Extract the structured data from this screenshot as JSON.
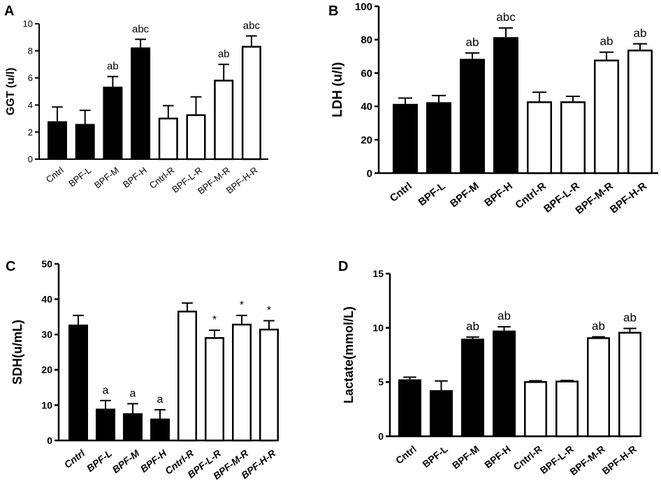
{
  "figure": {
    "panels": [
      "A",
      "B",
      "C",
      "D"
    ]
  },
  "chart_data": [
    {
      "panel": "A",
      "type": "bar",
      "ylabel": "GGT (u/l)",
      "ylim": [
        0,
        10
      ],
      "yticks": [
        "0",
        "2",
        "4",
        "6",
        "8",
        "10"
      ],
      "ytick_values": [
        0,
        2,
        4,
        6,
        8,
        10
      ],
      "categories": [
        "Cntrl",
        "BPF-L",
        "BPF-M",
        "BPF-H",
        "Cntrl-R",
        "BPF-L-R",
        "BPF-M-R",
        "BPF-H-R"
      ],
      "values": [
        2.8,
        2.6,
        5.35,
        8.25,
        3.0,
        3.25,
        5.8,
        8.3
      ],
      "errors": [
        1.05,
        1.0,
        0.75,
        0.6,
        0.95,
        1.35,
        1.2,
        0.8
      ],
      "fills": [
        "black",
        "black",
        "black",
        "black",
        "white",
        "white",
        "white",
        "white"
      ],
      "annotations": [
        "",
        "",
        "ab",
        "abc",
        "",
        "",
        "ab",
        "abc"
      ],
      "bold_labels": false,
      "italic_labels": false
    },
    {
      "panel": "B",
      "type": "bar",
      "ylabel": "LDH (u/l)",
      "ylim": [
        0,
        100
      ],
      "yticks": [
        "0",
        "20",
        "40",
        "60",
        "80",
        "100"
      ],
      "ytick_values": [
        0,
        20,
        40,
        60,
        80,
        100
      ],
      "categories": [
        "Cntrl",
        "BPF-L",
        "BPF-M",
        "BPF-H",
        "Cntrl-R",
        "BPF-L-R",
        "BPF-M-R",
        "BPF-H-R"
      ],
      "values": [
        41.5,
        42.5,
        68.5,
        81.5,
        42.5,
        42.5,
        67.5,
        73.5
      ],
      "errors": [
        3.5,
        4.0,
        3.5,
        5.5,
        6.0,
        3.5,
        5.0,
        4.0
      ],
      "fills": [
        "black",
        "black",
        "black",
        "black",
        "white",
        "white",
        "white",
        "white"
      ],
      "annotations": [
        "",
        "",
        "ab",
        "abc",
        "",
        "",
        "ab",
        "ab"
      ],
      "bold_labels": true,
      "italic_labels": false
    },
    {
      "panel": "C",
      "type": "bar",
      "ylabel": "SDH(u/mL)",
      "ylim": [
        0,
        50
      ],
      "yticks": [
        "0",
        "10",
        "20",
        "30",
        "40",
        "50"
      ],
      "ytick_values": [
        0,
        10,
        20,
        30,
        40,
        50
      ],
      "categories": [
        "Cntrl",
        "BPF-L",
        "BPF-M",
        "BPF-H",
        "Cntrl-R",
        "BPF-L-R",
        "BPF-M-R",
        "BPF-H-R"
      ],
      "values": [
        32.8,
        9.0,
        7.7,
        6.2,
        36.5,
        29.0,
        32.8,
        31.4
      ],
      "errors": [
        2.6,
        2.3,
        2.7,
        2.5,
        2.4,
        2.2,
        2.6,
        2.5
      ],
      "fills": [
        "black",
        "black",
        "black",
        "black",
        "white",
        "white",
        "white",
        "white"
      ],
      "annotations": [
        "",
        "a",
        "a",
        "a",
        "",
        "*",
        "*",
        "*"
      ],
      "bold_labels": true,
      "italic_labels": true
    },
    {
      "panel": "D",
      "type": "bar",
      "ylabel": "Lactate(mmol/L)",
      "ylim": [
        0,
        15
      ],
      "yticks": [
        "0",
        "5",
        "10",
        "15"
      ],
      "ytick_values": [
        0,
        5,
        10,
        15
      ],
      "categories": [
        "Cntrl",
        "BPF-L",
        "BPF-M",
        "BPF-H",
        "Cntrl-R",
        "BPF-L-R",
        "BPF-M-R",
        "BPF-H-R"
      ],
      "values": [
        5.25,
        4.25,
        9.0,
        9.75,
        5.0,
        5.05,
        9.05,
        9.55
      ],
      "errors": [
        0.2,
        0.85,
        0.15,
        0.35,
        0.12,
        0.1,
        0.12,
        0.4
      ],
      "fills": [
        "black",
        "black",
        "black",
        "black",
        "white",
        "white",
        "white",
        "white"
      ],
      "annotations": [
        "",
        "",
        "ab",
        "ab",
        "",
        "",
        "ab",
        "ab"
      ],
      "bold_labels": true,
      "italic_labels": false
    }
  ]
}
